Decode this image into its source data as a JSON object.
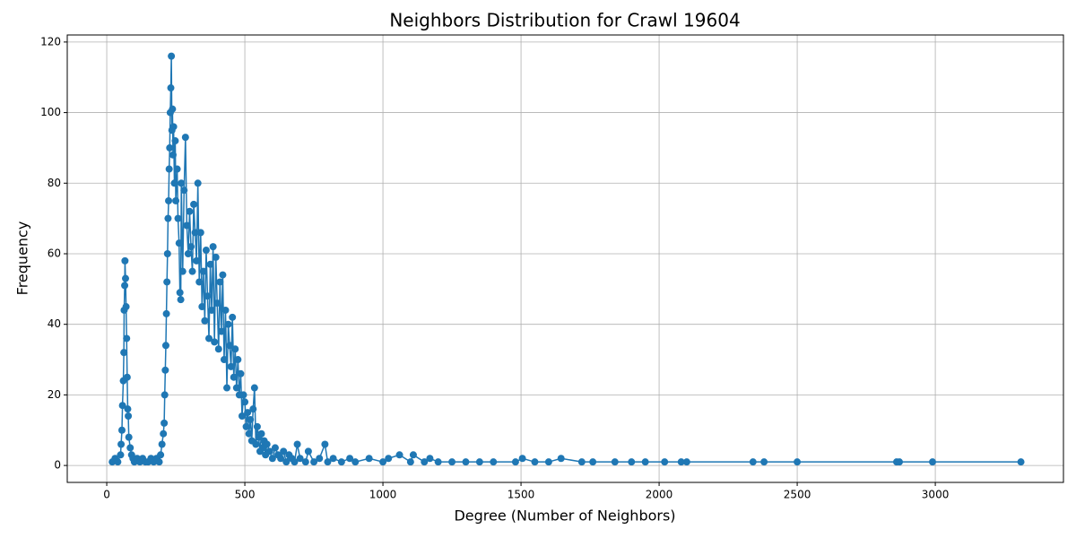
{
  "chart_data": {
    "type": "line",
    "title": "Neighbors Distribution for Crawl 19604",
    "xlabel": "Degree (Number of Neighbors)",
    "ylabel": "Frequency",
    "x": [
      20,
      30,
      40,
      50,
      52,
      55,
      57,
      60,
      62,
      63,
      65,
      66,
      68,
      70,
      72,
      74,
      76,
      78,
      80,
      85,
      90,
      95,
      100,
      110,
      120,
      130,
      140,
      150,
      160,
      170,
      180,
      190,
      195,
      200,
      205,
      208,
      210,
      212,
      214,
      216,
      218,
      220,
      222,
      224,
      226,
      228,
      230,
      232,
      234,
      236,
      238,
      240,
      242,
      245,
      248,
      250,
      255,
      258,
      262,
      265,
      268,
      270,
      275,
      280,
      285,
      290,
      295,
      300,
      305,
      310,
      315,
      320,
      325,
      330,
      335,
      340,
      345,
      350,
      355,
      360,
      365,
      370,
      375,
      380,
      385,
      390,
      395,
      400,
      405,
      410,
      415,
      420,
      425,
      430,
      435,
      440,
      445,
      450,
      455,
      460,
      465,
      470,
      475,
      480,
      485,
      490,
      495,
      500,
      505,
      510,
      515,
      520,
      525,
      530,
      535,
      540,
      545,
      550,
      555,
      560,
      565,
      570,
      575,
      580,
      590,
      600,
      610,
      620,
      630,
      640,
      650,
      660,
      670,
      680,
      690,
      700,
      720,
      730,
      750,
      770,
      790,
      800,
      820,
      850,
      880,
      900,
      950,
      1000,
      1020,
      1060,
      1100,
      1110,
      1150,
      1170,
      1200,
      1250,
      1300,
      1350,
      1400,
      1480,
      1505,
      1550,
      1600,
      1645,
      1720,
      1760,
      1840,
      1900,
      1950,
      2020,
      2080,
      2100,
      2340,
      2380,
      2500,
      2860,
      2870,
      2990,
      3310
    ],
    "series": [
      {
        "name": "Frequency",
        "color": "#1f77b4",
        "values": [
          1,
          2,
          1,
          3,
          6,
          10,
          17,
          24,
          32,
          44,
          51,
          58,
          53,
          45,
          36,
          25,
          16,
          14,
          8,
          5,
          3,
          2,
          1,
          2,
          1,
          2,
          1,
          1,
          2,
          1,
          2,
          1,
          3,
          6,
          9,
          12,
          20,
          27,
          34,
          43,
          52,
          60,
          70,
          75,
          84,
          90,
          100,
          107,
          116,
          95,
          101,
          88,
          96,
          80,
          92,
          75,
          84,
          70,
          63,
          49,
          47,
          80,
          55,
          78,
          93,
          68,
          60,
          72,
          62,
          55,
          74,
          66,
          58,
          80,
          52,
          66,
          45,
          55,
          41,
          61,
          48,
          36,
          57,
          44,
          62,
          35,
          59,
          46,
          33,
          52,
          38,
          54,
          30,
          44,
          22,
          40,
          34,
          28,
          42,
          25,
          33,
          22,
          30,
          20,
          26,
          14,
          20,
          18,
          11,
          15,
          9,
          13,
          7,
          16,
          22,
          6,
          11,
          8,
          4,
          9,
          5,
          7,
          3,
          6,
          4,
          2,
          5,
          3,
          2,
          4,
          1,
          3,
          2,
          1,
          6,
          2,
          1,
          4,
          1,
          2,
          6,
          1,
          2,
          1,
          2,
          1,
          2,
          1,
          2,
          3,
          1,
          3,
          1,
          2,
          1,
          1,
          1,
          1,
          1,
          1,
          2,
          1,
          1,
          2,
          1,
          1,
          1,
          1,
          1,
          1,
          1,
          1,
          1,
          1,
          1,
          1,
          1,
          1,
          1
        ]
      }
    ],
    "xlim": [
      -143,
      3464
    ],
    "ylim": [
      -4.8,
      122
    ],
    "xticks": [
      0,
      500,
      1000,
      1500,
      2000,
      2500,
      3000
    ],
    "yticks": [
      0,
      20,
      40,
      60,
      80,
      100,
      120
    ],
    "grid": true
  }
}
